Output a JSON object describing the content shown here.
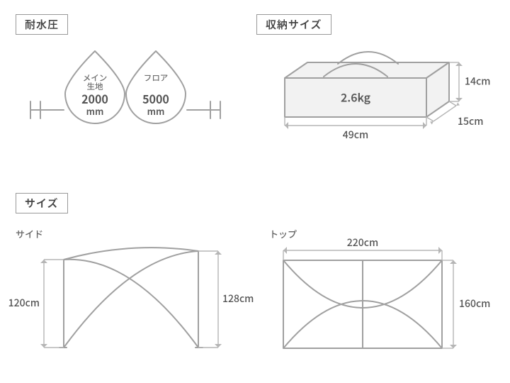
{
  "colors": {
    "stroke": "#a0a0a0",
    "stroke_light": "#b5b5b5",
    "fill_bag": "#f2f2f2",
    "text_dark": "#555555",
    "text_mid": "#707070",
    "label_border": "#9a9a9a",
    "bg": "#ffffff"
  },
  "stroke_width": 2,
  "stroke_width_thin": 1.4,
  "waterproof": {
    "title": "耐水圧",
    "drops": [
      {
        "top_label": "メイン",
        "sub_label": "生地",
        "value": "2000",
        "unit": "mm"
      },
      {
        "top_label": "フロア",
        "sub_label": "",
        "value": "5000",
        "unit": "mm"
      }
    ]
  },
  "storage": {
    "title": "収納サイズ",
    "weight": "2.6kg",
    "width": "49cm",
    "depth": "15cm",
    "height": "14cm"
  },
  "size": {
    "title": "サイズ",
    "side": {
      "label": "サイド",
      "left_height": "120cm",
      "right_height": "128cm"
    },
    "top": {
      "label": "トップ",
      "width": "220cm",
      "depth": "160cm"
    }
  }
}
